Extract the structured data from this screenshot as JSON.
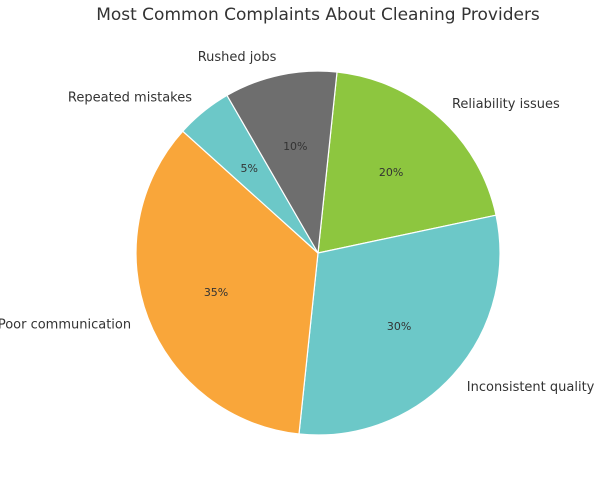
{
  "chart_data": {
    "type": "pie",
    "title": "Most Common Complaints About Cleaning Providers",
    "categories": [
      "Reliability issues",
      "Inconsistent quality",
      "Poor communication",
      "Repeated mistakes",
      "Rushed jobs"
    ],
    "values": [
      20,
      30,
      35,
      5,
      10
    ],
    "value_labels": [
      "20%",
      "30%",
      "35%",
      "5%",
      "10%"
    ],
    "colors": [
      "#8dc63f",
      "#6cc8c8",
      "#f9a63a",
      "#6cc8c8",
      "#6e6e6e"
    ],
    "start_angle_deg": 84,
    "direction": "clockwise",
    "legend": "none"
  }
}
